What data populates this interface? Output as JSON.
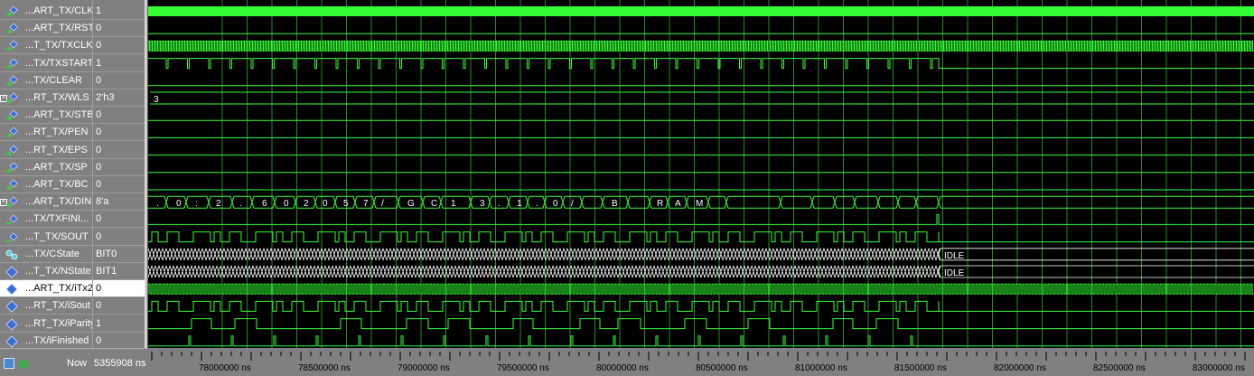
{
  "signals": [
    {
      "name": "...ART_TX/CLK",
      "value": "1",
      "icon": "signal-in-icon"
    },
    {
      "name": "...ART_TX/RST",
      "value": "0",
      "icon": "signal-in-icon"
    },
    {
      "name": "...T_TX/TXCLK",
      "value": "0",
      "icon": "signal-in-icon"
    },
    {
      "name": "...TX/TXSTART",
      "value": "1",
      "icon": "signal-in-icon"
    },
    {
      "name": "...TX/CLEAR",
      "value": "0",
      "icon": "signal-in-icon"
    },
    {
      "name": "...RT_TX/WLS",
      "value": "2'h3",
      "icon": "signal-in-icon",
      "expandable": true
    },
    {
      "name": "...ART_TX/STB",
      "value": "0",
      "icon": "signal-in-icon"
    },
    {
      "name": "...RT_TX/PEN",
      "value": "0",
      "icon": "signal-in-icon"
    },
    {
      "name": "...RT_TX/EPS",
      "value": "0",
      "icon": "signal-in-icon"
    },
    {
      "name": "...ART_TX/SP",
      "value": "0",
      "icon": "signal-in-icon"
    },
    {
      "name": "...ART_TX/BC",
      "value": "0",
      "icon": "signal-in-icon"
    },
    {
      "name": "...ART_TX/DIN",
      "value": "8'a",
      "icon": "signal-in-icon",
      "expandable": true
    },
    {
      "name": "...TX/TXFINI...",
      "value": "0",
      "icon": "signal-out-icon"
    },
    {
      "name": "...T_TX/SOUT",
      "value": "0",
      "icon": "signal-out-icon"
    },
    {
      "name": "...TX/CState",
      "value": "BIT0",
      "icon": "state-machine-icon"
    },
    {
      "name": "...T_TX/NState",
      "value": "BIT1",
      "icon": "signal-internal-icon"
    },
    {
      "name": "...ART_TX/iTx2",
      "value": "0",
      "icon": "signal-internal-icon",
      "selected": true
    },
    {
      "name": "...RT_TX/iSout",
      "value": "0",
      "icon": "signal-internal-icon"
    },
    {
      "name": "...RT_TX/iParity",
      "value": "1",
      "icon": "signal-internal-icon"
    },
    {
      "name": "...TX/iFinished",
      "value": "0",
      "icon": "signal-internal-icon"
    }
  ],
  "wave_text": {
    "wls": "3",
    "din": [
      ".",
      "0",
      ":",
      "2",
      ".",
      "6",
      "0",
      "2",
      "0",
      "5",
      "7",
      "/",
      "G",
      "C",
      "1",
      "3",
      ".",
      "1",
      ".",
      "0",
      "/",
      "B",
      "R",
      "A",
      "M"
    ],
    "cstate_end": "IDLE",
    "nstate_end": "IDLE"
  },
  "cursor": {
    "now_label": "Now",
    "now_value": "5355908 ns"
  },
  "timeline": {
    "labels": [
      "78000000 ns",
      "78500000 ns",
      "79000000 ns",
      "79500000 ns",
      "80000000 ns",
      "80500000 ns",
      "81000000 ns",
      "81500000 ns",
      "82000000 ns",
      "82500000 ns",
      "83000000 ns"
    ]
  },
  "colors": {
    "wave": "#33ff33",
    "grid": "#2a8a2a",
    "panel": "#808080",
    "background": "#000000"
  }
}
